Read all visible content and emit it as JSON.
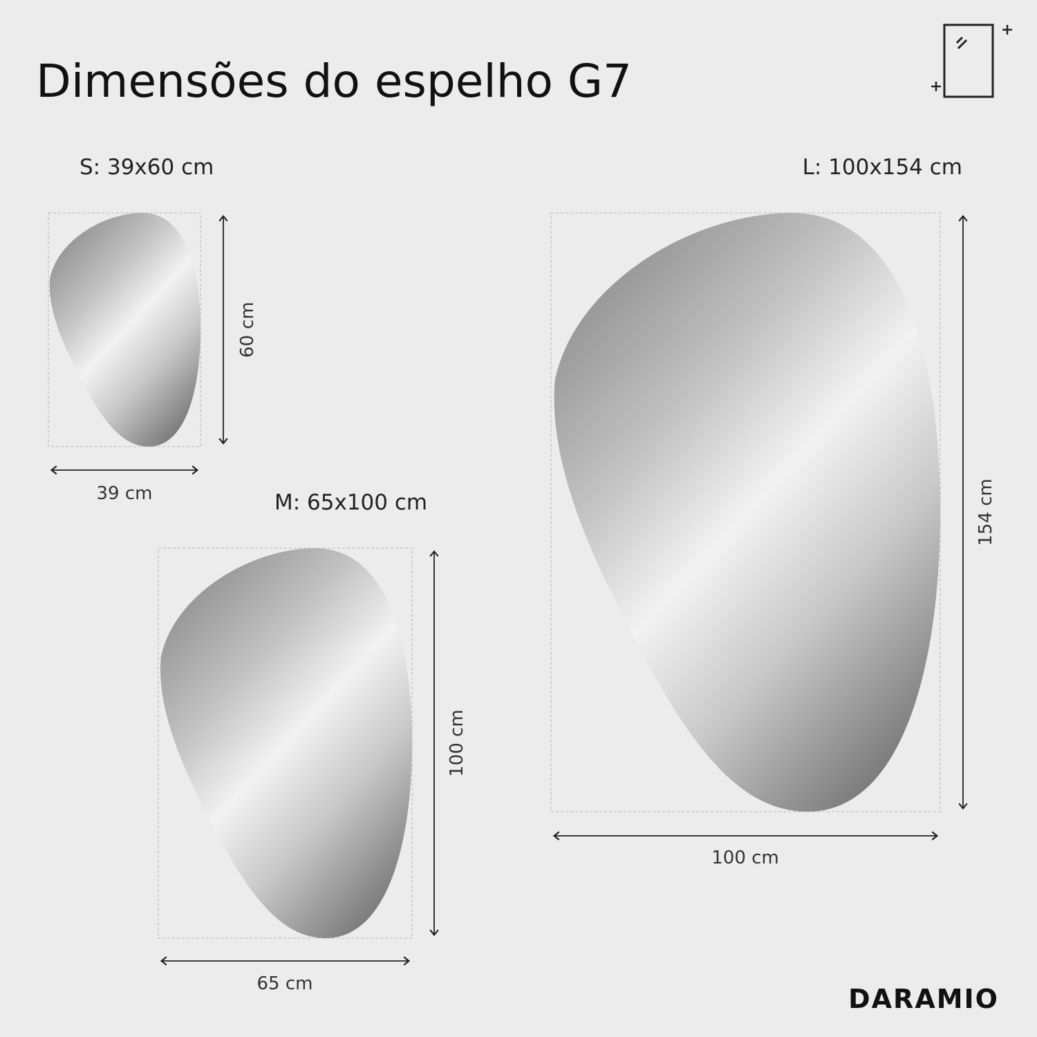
{
  "header": {
    "title": "Dimensões do espelho G7"
  },
  "mirrors": [
    {
      "label": "S: 39x60 cm",
      "width_label": "39 cm",
      "height_label": "60 cm"
    },
    {
      "label": "M: 65x100 cm",
      "width_label": "65 cm",
      "height_label": "100 cm"
    },
    {
      "label": "L: 100x154 cm",
      "width_label": "100 cm",
      "height_label": "154 cm"
    }
  ],
  "brand": "DARAMIO"
}
